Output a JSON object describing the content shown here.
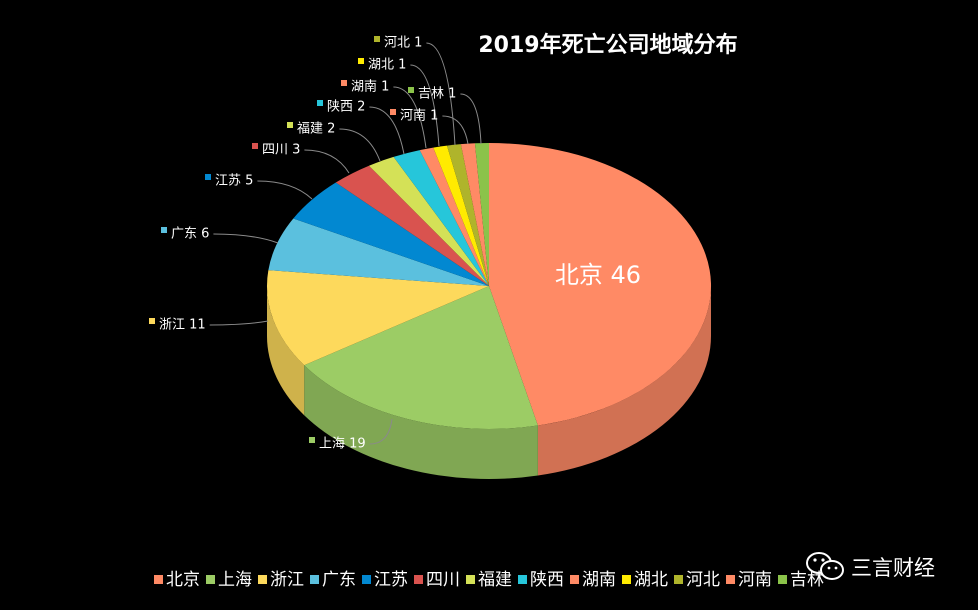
{
  "chart_data": {
    "type": "pie",
    "title": "2019年死亡公司地域分布",
    "categories": [
      "北京",
      "上海",
      "浙江",
      "广东",
      "江苏",
      "四川",
      "福建",
      "陕西",
      "湖南",
      "湖北",
      "河北",
      "河南",
      "吉林"
    ],
    "values": [
      46,
      19,
      11,
      6,
      5,
      3,
      2,
      2,
      1,
      1,
      1,
      1,
      1
    ],
    "colors": [
      "#FF8A65",
      "#9CCC65",
      "#FDD95C",
      "#5BC0DE",
      "#0288D1",
      "#D9534F",
      "#D4E157",
      "#26C6DA",
      "#FF8A65",
      "#FFEB00",
      "#AFB42B",
      "#FF8A65",
      "#8BC34A"
    ],
    "data_labels": [
      "北京 46",
      "上海 19",
      "浙江 11",
      "广东 6",
      "江苏 5",
      "四川 3",
      "福建 2",
      "陕西 2",
      "湖南 1",
      "湖北 1",
      "河北 1",
      "河南 1",
      "吉林 1"
    ],
    "legend_position": "bottom"
  },
  "watermark": {
    "text": "三言财经",
    "icon": "wechat-icon"
  }
}
